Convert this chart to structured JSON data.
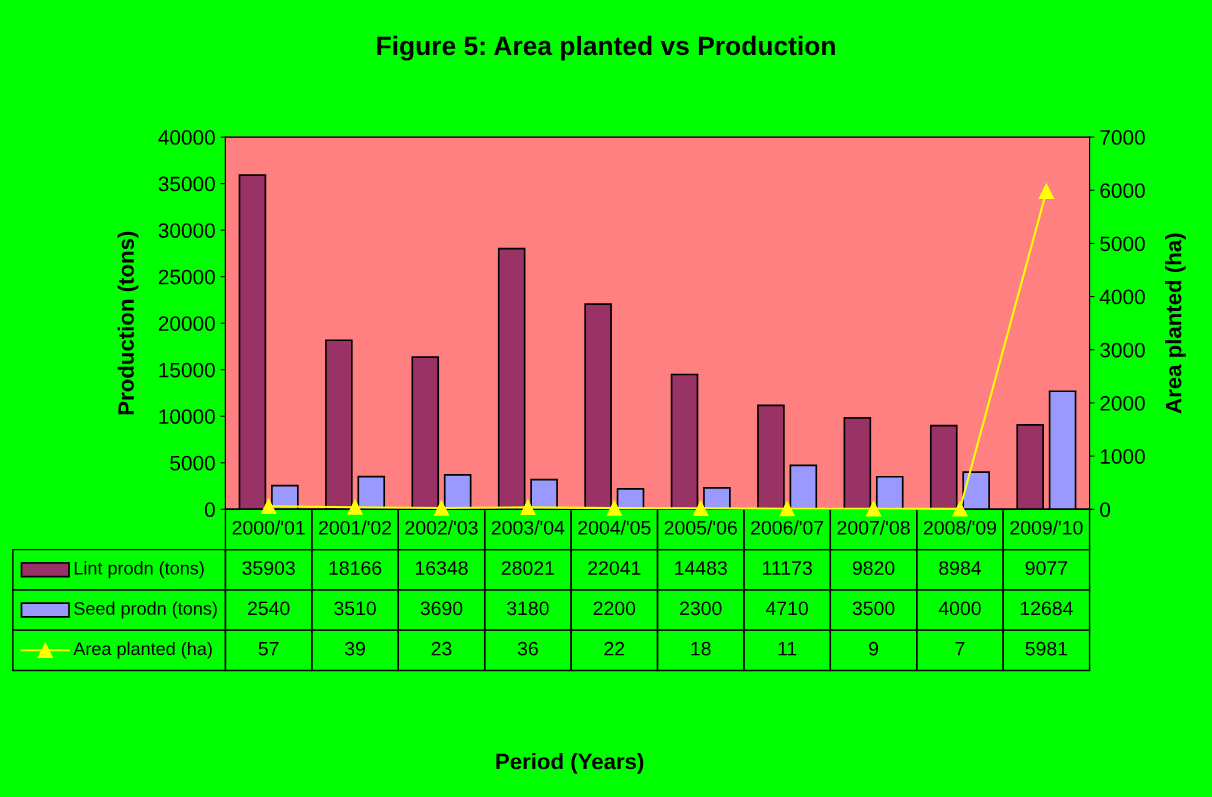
{
  "chart_data": {
    "type": "bar",
    "title": "Figure 5: Area planted vs Production",
    "annotations": [
      "Period (Years)"
    ],
    "ylabel": "Production (tons)",
    "y2label": "Area planted (ha)",
    "categories": [
      "2000/'01",
      "2001/'02",
      "2002/'03",
      "2003/'04",
      "2004/'05",
      "2005/'06",
      "2006/'07",
      "2007/'08",
      "2008/'09",
      "2009/'10"
    ],
    "series": [
      {
        "name": "Lint prodn (tons)",
        "color": "#993366",
        "values": [
          35903,
          18166,
          16348,
          28021,
          22041,
          14483,
          11173,
          9820,
          8984,
          9077
        ]
      },
      {
        "name": "Seed prodn (tons)",
        "color": "#9999ff",
        "values": [
          2540,
          3510,
          3690,
          3180,
          2200,
          2300,
          4710,
          3500,
          4000,
          12684
        ]
      },
      {
        "name": "Area planted (ha)",
        "color": "#ffff00",
        "type": "line",
        "axis": "y2",
        "marker": "triangle",
        "values": [
          57,
          39,
          23,
          36,
          22,
          18,
          11,
          9,
          7,
          5981
        ]
      }
    ],
    "ylim": [
      0,
      40000
    ],
    "yticks": [
      0,
      5000,
      10000,
      15000,
      20000,
      25000,
      30000,
      35000,
      40000
    ],
    "y2lim": [
      0,
      7000
    ],
    "y2ticks": [
      0,
      1000,
      2000,
      3000,
      4000,
      5000,
      6000,
      7000
    ],
    "data_labels": true,
    "legend": "bottom",
    "grid": false
  }
}
